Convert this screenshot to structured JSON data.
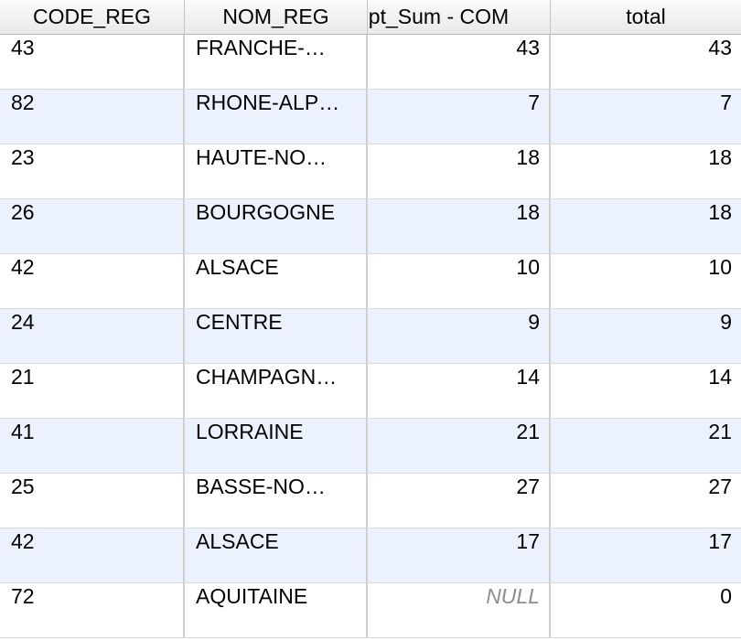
{
  "columns": [
    "CODE_REG",
    "NOM_REG",
    "dpt_Sum - COM",
    "total"
  ],
  "rows": [
    {
      "code": "43",
      "nom": "FRANCHE-…",
      "sum": "43",
      "total": "43"
    },
    {
      "code": "82",
      "nom": "RHONE-ALP…",
      "sum": "7",
      "total": "7"
    },
    {
      "code": "23",
      "nom": "HAUTE-NO…",
      "sum": "18",
      "total": "18"
    },
    {
      "code": "26",
      "nom": "BOURGOGNE",
      "sum": "18",
      "total": "18"
    },
    {
      "code": "42",
      "nom": "ALSACE",
      "sum": "10",
      "total": "10"
    },
    {
      "code": "24",
      "nom": "CENTRE",
      "sum": "9",
      "total": "9"
    },
    {
      "code": "21",
      "nom": "CHAMPAGN…",
      "sum": "14",
      "total": "14"
    },
    {
      "code": "41",
      "nom": "LORRAINE",
      "sum": "21",
      "total": "21"
    },
    {
      "code": "25",
      "nom": "BASSE-NO…",
      "sum": "27",
      "total": "27"
    },
    {
      "code": "42",
      "nom": "ALSACE",
      "sum": "17",
      "total": "17"
    },
    {
      "code": "72",
      "nom": "AQUITAINE",
      "sum": "NULL",
      "total": "0"
    }
  ]
}
